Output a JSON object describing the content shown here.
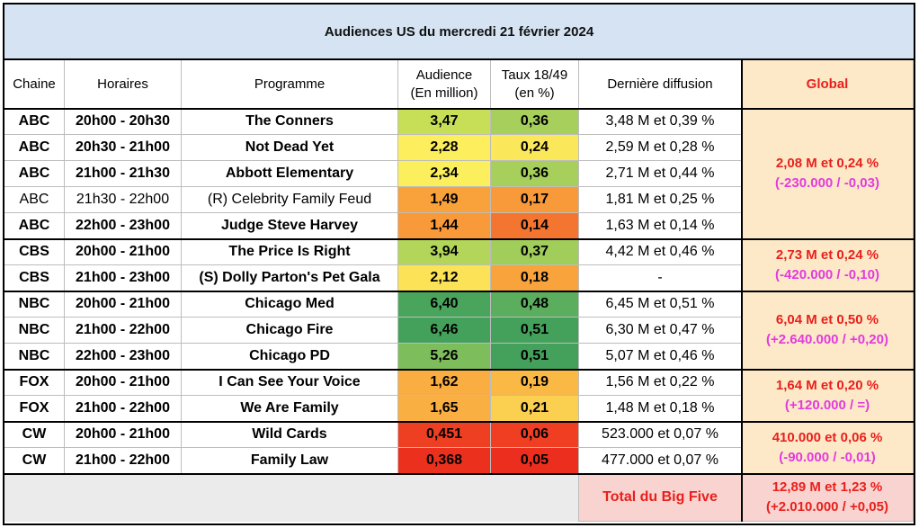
{
  "title": "Audiences US du mercredi 21 février 2024",
  "headers": {
    "chaine": "Chaine",
    "horaires": "Horaires",
    "programme": "Programme",
    "audience_l1": "Audience",
    "audience_l2": "(En million)",
    "taux_l1": "Taux 18/49",
    "taux_l2": "(en %)",
    "derniere": "Dernière diffusion",
    "global": "Global"
  },
  "rows": [
    {
      "chaine": "ABC",
      "horaires": "20h00 - 20h30",
      "programme": "The Conners",
      "audience": "3,47",
      "taux": "0,36",
      "derniere": "3,48 M et 0,39 %",
      "bold": true,
      "aud_color": "#c6df57",
      "taux_color": "#a6d05b"
    },
    {
      "chaine": "ABC",
      "horaires": "20h30 - 21h00",
      "programme": "Not Dead Yet",
      "audience": "2,28",
      "taux": "0,24",
      "derniere": "2,59 M et 0,28 %",
      "bold": true,
      "aud_color": "#fdee5d",
      "taux_color": "#fbe85a"
    },
    {
      "chaine": "ABC",
      "horaires": "21h00 - 21h30",
      "programme": "Abbott Elementary",
      "audience": "2,34",
      "taux": "0,36",
      "derniere": "2,71 M et 0,44 %",
      "bold": true,
      "aud_color": "#fcef5e",
      "taux_color": "#a6d05b"
    },
    {
      "chaine": "ABC",
      "horaires": "21h30 - 22h00",
      "programme": "(R) Celebrity Family Feud",
      "audience": "1,49",
      "taux": "0,17",
      "derniere": "1,81 M et 0,25 %",
      "bold": false,
      "aud_color": "#f9a23c",
      "taux_color": "#f8993a"
    },
    {
      "chaine": "ABC",
      "horaires": "22h00 - 23h00",
      "programme": "Judge Steve Harvey",
      "audience": "1,44",
      "taux": "0,14",
      "derniere": "1,63 M et 0,14 %",
      "bold": true,
      "aud_color": "#f99a3a",
      "taux_color": "#f47530"
    },
    {
      "chaine": "CBS",
      "horaires": "20h00 - 21h00",
      "programme": "The Price Is Right",
      "audience": "3,94",
      "taux": "0,37",
      "derniere": "4,42 M et 0,46 %",
      "bold": true,
      "aud_color": "#b3d65a",
      "taux_color": "#a1ce5a"
    },
    {
      "chaine": "CBS",
      "horaires": "21h00 - 23h00",
      "programme": "(S) Dolly Parton's Pet Gala",
      "audience": "2,12",
      "taux": "0,18",
      "derniere": "-",
      "bold": true,
      "aud_color": "#fbe257",
      "taux_color": "#f9a33d"
    },
    {
      "chaine": "NBC",
      "horaires": "20h00 - 21h00",
      "programme": "Chicago Med",
      "audience": "6,40",
      "taux": "0,48",
      "derniere": "6,45 M et 0,51 %",
      "bold": true,
      "aud_color": "#4aa55c",
      "taux_color": "#5aae5d"
    },
    {
      "chaine": "NBC",
      "horaires": "21h00 - 22h00",
      "programme": "Chicago Fire",
      "audience": "6,46",
      "taux": "0,51",
      "derniere": "6,30 M et 0,47 %",
      "bold": true,
      "aud_color": "#44a15b",
      "taux_color": "#44a15b"
    },
    {
      "chaine": "NBC",
      "horaires": "22h00 - 23h00",
      "programme": "Chicago PD",
      "audience": "5,26",
      "taux": "0,51",
      "derniere": "5,07 M et 0,46 %",
      "bold": true,
      "aud_color": "#7dbd5b",
      "taux_color": "#44a15b"
    },
    {
      "chaine": "FOX",
      "horaires": "20h00 - 21h00",
      "programme": "I Can See Your Voice",
      "audience": "1,62",
      "taux": "0,19",
      "derniere": "1,56 M et 0,22 %",
      "bold": true,
      "aud_color": "#faad41",
      "taux_color": "#fab844"
    },
    {
      "chaine": "FOX",
      "horaires": "21h00 - 22h00",
      "programme": "We Are Family",
      "audience": "1,65",
      "taux": "0,21",
      "derniere": "1,48 M et 0,18 %",
      "bold": true,
      "aud_color": "#faaf42",
      "taux_color": "#fbcf4f"
    },
    {
      "chaine": "CW",
      "horaires": "20h00 - 21h00",
      "programme": "Wild Cards",
      "audience": "0,451",
      "taux": "0,06",
      "derniere": "523.000 et 0,07 %",
      "bold": true,
      "aud_color": "#ee3f22",
      "taux_color": "#ef3e22"
    },
    {
      "chaine": "CW",
      "horaires": "21h00 - 22h00",
      "programme": "Family Law",
      "audience": "0,368",
      "taux": "0,05",
      "derniere": "477.000 et 0,07 %",
      "bold": true,
      "aud_color": "#ec301e",
      "taux_color": "#ec2e1e"
    }
  ],
  "globals": [
    {
      "network": "ABC",
      "line1": "2,08 M et 0,24 %",
      "line2": "(-230.000 / -0,03)"
    },
    {
      "network": "CBS",
      "line1": "2,73 M et 0,24 %",
      "line2": "(-420.000 / -0,10)"
    },
    {
      "network": "NBC",
      "line1": "6,04 M et 0,50 %",
      "line2": "(+2.640.000 / +0,20)"
    },
    {
      "network": "FOX",
      "line1": "1,64 M et 0,20 %",
      "line2": "(+120.000 / =)"
    },
    {
      "network": "CW",
      "line1": "410.000 et 0,06 %",
      "line2": "(-90.000 / -0,01)"
    }
  ],
  "total": {
    "label": "Total du Big Five",
    "line1": "12,89 M et 1,23 %",
    "line2": "(+2.010.000 / +0,05)"
  },
  "colors": {
    "title_bg": "#d5e3f2",
    "global_bg": "#fde9c7",
    "global_header_bg": "#fde9c7",
    "total_label_bg": "#f9d3cf",
    "global_main_text": "#e8201d",
    "global_delta_text": "#e23adf"
  }
}
